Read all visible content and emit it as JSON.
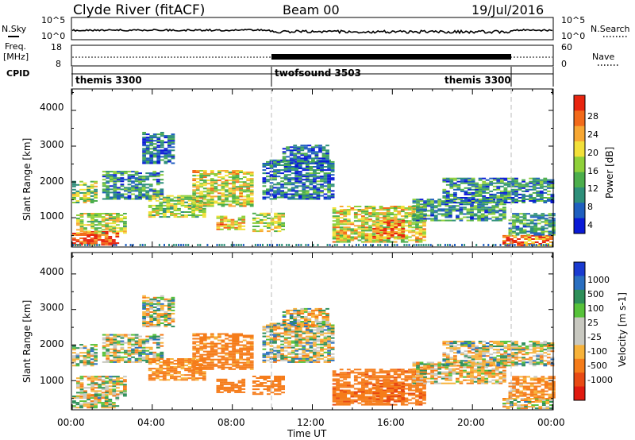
{
  "header": {
    "station": "Clyde River (fitACF)",
    "beam": "Beam 00",
    "date": "19/Jul/2016"
  },
  "top_panels": {
    "nsky_label": "N.Sky",
    "nsky_ticks": [
      "10^5",
      "10^0"
    ],
    "nsearch_label": "N.Search",
    "freq_label": "Freq.",
    "freq_unit": "[MHz]",
    "freq_ticks": [
      "18",
      "8"
    ],
    "nave_label": "Nave",
    "nave_ticks": [
      "60",
      "0"
    ],
    "cpid_label": "CPID",
    "cpid_segments": [
      {
        "name": "themis 3300",
        "start_h": 0,
        "end_h": 10
      },
      {
        "name": "twofsound 3503",
        "start_h": 10,
        "end_h": 22
      },
      {
        "name": "themis 3300",
        "start_h": 22,
        "end_h": 24
      }
    ],
    "mode_change_hours": [
      10,
      22
    ]
  },
  "x_axis": {
    "label": "Time UT",
    "ticks": [
      "00:00",
      "04:00",
      "08:00",
      "12:00",
      "16:00",
      "20:00",
      "00:00"
    ],
    "range_hours": [
      0,
      24
    ]
  },
  "power_panel": {
    "ylabel": "Slant Range [km]",
    "yticks": [
      "4000",
      "3000",
      "2000",
      "1000"
    ],
    "colorbar_label": "Power [dB]",
    "colorbar_ticks": [
      "28",
      "24",
      "20",
      "16",
      "12",
      "8",
      "4"
    ],
    "colors": [
      "#0a1ad6",
      "#1f5fbf",
      "#2e8f7a",
      "#4cae4c",
      "#8fd03a",
      "#f2e03a",
      "#f7a733",
      "#f26a1a",
      "#e8250f"
    ]
  },
  "velocity_panel": {
    "ylabel": "Slant Range [km]",
    "yticks": [
      "4000",
      "3000",
      "2000",
      "1000"
    ],
    "colorbar_label": "Velocity [m s-1]",
    "colorbar_ticks": [
      "1000",
      "500",
      "100",
      "25",
      "-25",
      "-100",
      "-500",
      "-1000"
    ],
    "colors": [
      "#1a3bd0",
      "#2a6fc0",
      "#2e8f5a",
      "#57c23a",
      "#c8c8c0",
      "#c8c8c0",
      "#f7b23a",
      "#f57c1a",
      "#e84a14",
      "#e01a10"
    ]
  },
  "chart_data": {
    "type": "heatmap",
    "title": "Clyde River (fitACF) Beam 00 19/Jul/2016",
    "xlabel": "Time UT",
    "ylabel": "Slant Range [km]",
    "xlim_hours": [
      0,
      24
    ],
    "ylim_km": [
      180,
      4600
    ],
    "panels": [
      "Power [dB]",
      "Velocity [m s-1]"
    ],
    "power_range_db": [
      0,
      30
    ],
    "velocity_range": [
      -1000,
      1000
    ],
    "echo_regions": [
      {
        "t0": 0.0,
        "t1": 2.2,
        "r0": 220,
        "r1": 600,
        "power": 27,
        "vel": -20
      },
      {
        "t0": 0.2,
        "t1": 2.6,
        "r0": 550,
        "r1": 1100,
        "power": 16,
        "vel": -25
      },
      {
        "t0": 0.0,
        "t1": 1.2,
        "r0": 1400,
        "r1": 2000,
        "power": 14,
        "vel": 10
      },
      {
        "t0": 1.5,
        "t1": 4.5,
        "r0": 1500,
        "r1": 2300,
        "power": 9,
        "vel": 0
      },
      {
        "t0": 3.5,
        "t1": 5.0,
        "r0": 2500,
        "r1": 3400,
        "power": 6,
        "vel": 0
      },
      {
        "t0": 3.8,
        "t1": 6.6,
        "r0": 1000,
        "r1": 1600,
        "power": 14,
        "vel": -180
      },
      {
        "t0": 6.0,
        "t1": 9.0,
        "r0": 1300,
        "r1": 2300,
        "power": 17,
        "vel": -200
      },
      {
        "t0": 7.2,
        "t1": 8.6,
        "r0": 650,
        "r1": 1050,
        "power": 20,
        "vel": -300
      },
      {
        "t0": 9.0,
        "t1": 10.5,
        "r0": 600,
        "r1": 1100,
        "power": 17,
        "vel": -250
      },
      {
        "t0": 9.5,
        "t1": 13.0,
        "r0": 1500,
        "r1": 2600,
        "power": 7,
        "vel": 0
      },
      {
        "t0": 10.5,
        "t1": 12.8,
        "r0": 2500,
        "r1": 3000,
        "power": 6,
        "vel": 0
      },
      {
        "t0": 13.0,
        "t1": 17.5,
        "r0": 300,
        "r1": 1300,
        "power": 18,
        "vel": -400
      },
      {
        "t0": 15.0,
        "t1": 16.6,
        "r0": 400,
        "r1": 900,
        "power": 24,
        "vel": -500
      },
      {
        "t0": 17.0,
        "t1": 21.5,
        "r0": 900,
        "r1": 1500,
        "power": 9,
        "vel": -60
      },
      {
        "t0": 18.5,
        "t1": 24.0,
        "r0": 1400,
        "r1": 2100,
        "power": 8,
        "vel": 0
      },
      {
        "t0": 21.5,
        "t1": 24.0,
        "r0": 200,
        "r1": 500,
        "power": 24,
        "vel": -20
      },
      {
        "t0": 21.8,
        "t1": 24.0,
        "r0": 500,
        "r1": 1100,
        "power": 10,
        "vel": -150
      }
    ]
  }
}
